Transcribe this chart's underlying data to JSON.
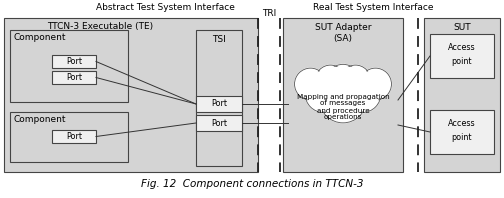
{
  "title": "Fig. 12  Component connections in TTCN-3",
  "header_atsi": "Abstract Test System Interface",
  "header_rtsi": "Real Test System Interface",
  "header_tri": "TRI",
  "bg_color": "#ffffff",
  "box_fill_light": "#d4d4d4",
  "box_fill_white": "#f0f0f0",
  "box_edge": "#444444",
  "font_size_main": 6.5,
  "font_size_small": 5.8,
  "font_size_caption": 7.5,
  "cloud_text": "Mapping and propagation\nof messages\nand procedure\noperations"
}
